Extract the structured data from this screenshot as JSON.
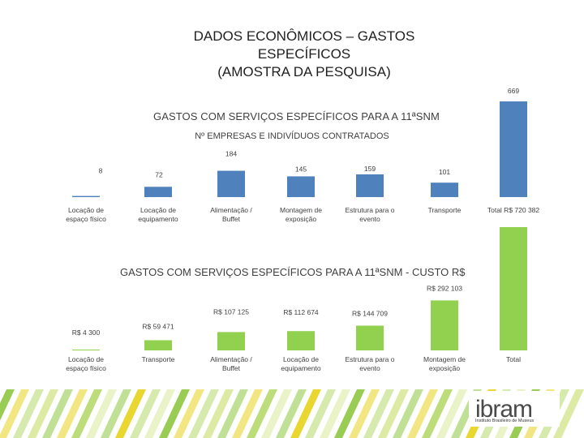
{
  "slide": {
    "title_lines": [
      "DADOS ECONÔMICOS – GASTOS",
      "ESPECÍFICOS",
      "(AMOSTRA DA PESQUISA)"
    ]
  },
  "logo": {
    "text": "ibram",
    "subtext": "Instituto Brasileiro de Museus"
  },
  "colors": {
    "blue": "#4f81bd",
    "green": "#92d050",
    "footer_green": "#8dc63f",
    "footer_yellow": "#e8d21b"
  },
  "chart_data": [
    {
      "type": "bar",
      "title": "GASTOS COM SERVIÇOS ESPECÍFICOS PARA A 11ªSNM",
      "subtitle": "Nº EMPRESAS E INDIVÍDUOS CONTRATADOS",
      "categories": [
        "Locação de espaço físico",
        "Locação de equipamento",
        "Alimentação / Buffet",
        "Montagem de exposição",
        "Estrutura para o evento",
        "Transporte",
        "Total R$ 720 382"
      ],
      "values": [
        8,
        72,
        184,
        145,
        159,
        101,
        669
      ],
      "data_labels": [
        "8",
        "72",
        "184",
        "145",
        "159",
        "101",
        "669"
      ],
      "color": "#4f81bd",
      "grid": false
    },
    {
      "type": "bar",
      "title": "GASTOS COM SERVIÇOS ESPECÍFICOS PARA A 11ªSNM - CUSTO R$",
      "categories": [
        "Locação de espaço físico",
        "Transporte",
        "Alimentação / Buffet",
        "Locação de equipamento",
        "Estrutura para o evento",
        "Montagem de exposição",
        "Total"
      ],
      "values": [
        4300,
        59471,
        107125,
        112674,
        144709,
        292103,
        720382
      ],
      "data_labels": [
        "R$ 4 300",
        "R$ 59 471",
        "R$ 107 125",
        "R$ 112 674",
        "R$ 144 709",
        "R$ 292 103",
        ""
      ],
      "color": "#92d050",
      "grid": false
    }
  ]
}
